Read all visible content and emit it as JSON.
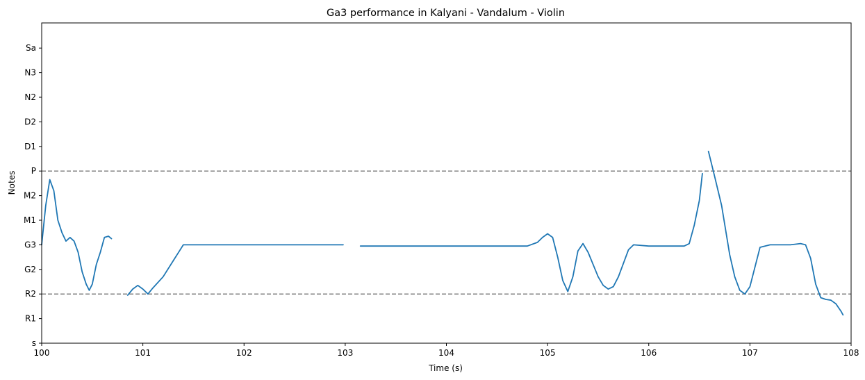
{
  "chart_data": {
    "type": "line",
    "title": "Ga3 performance in Kalyani - Vandalum - Violin",
    "xlabel": "Time (s)",
    "ylabel": "Notes",
    "xlim": [
      100,
      108
    ],
    "x_ticks": [
      100,
      101,
      102,
      103,
      104,
      105,
      106,
      107,
      108
    ],
    "y_ticks": [
      "s",
      "R1",
      "R2",
      "G2",
      "G3",
      "M1",
      "M2",
      "P",
      "D1",
      "D2",
      "N2",
      "N3",
      "Sa"
    ],
    "reference_lines": [
      "R2",
      "P"
    ],
    "grid": false,
    "legend": "none",
    "colors": {
      "series": "#1f77b4",
      "reference_line": "#808080"
    },
    "series": [
      {
        "segments": [
          [
            [
              100.0,
              4.0
            ],
            [
              100.04,
              5.6
            ],
            [
              100.08,
              6.65
            ],
            [
              100.12,
              6.2
            ],
            [
              100.16,
              5.0
            ],
            [
              100.2,
              4.5
            ],
            [
              100.24,
              4.15
            ],
            [
              100.28,
              4.3
            ],
            [
              100.32,
              4.15
            ],
            [
              100.36,
              3.7
            ],
            [
              100.4,
              2.9
            ],
            [
              100.44,
              2.4
            ],
            [
              100.47,
              2.15
            ],
            [
              100.5,
              2.4
            ],
            [
              100.54,
              3.2
            ],
            [
              100.58,
              3.7
            ],
            [
              100.62,
              4.3
            ],
            [
              100.66,
              4.35
            ],
            [
              100.69,
              4.25
            ]
          ],
          [
            [
              100.85,
              1.95
            ],
            [
              100.9,
              2.2
            ],
            [
              100.95,
              2.35
            ],
            [
              101.0,
              2.2
            ],
            [
              101.05,
              2.0
            ],
            [
              101.1,
              2.25
            ],
            [
              101.2,
              2.7
            ],
            [
              101.3,
              3.35
            ],
            [
              101.4,
              4.0
            ],
            [
              101.6,
              4.0
            ],
            [
              101.8,
              4.0
            ],
            [
              102.0,
              4.0
            ],
            [
              102.2,
              4.0
            ],
            [
              102.4,
              4.0
            ],
            [
              102.6,
              4.0
            ],
            [
              102.8,
              4.0
            ],
            [
              102.98,
              4.0
            ]
          ],
          [
            [
              103.15,
              3.95
            ],
            [
              103.3,
              3.95
            ],
            [
              103.45,
              3.95
            ],
            [
              103.6,
              3.95
            ],
            [
              103.8,
              3.95
            ],
            [
              104.0,
              3.95
            ],
            [
              104.2,
              3.95
            ],
            [
              104.4,
              3.95
            ],
            [
              104.6,
              3.95
            ],
            [
              104.8,
              3.95
            ],
            [
              104.9,
              4.1
            ],
            [
              104.95,
              4.3
            ],
            [
              105.0,
              4.45
            ],
            [
              105.05,
              4.3
            ],
            [
              105.1,
              3.5
            ],
            [
              105.15,
              2.55
            ],
            [
              105.2,
              2.1
            ],
            [
              105.25,
              2.7
            ],
            [
              105.3,
              3.75
            ],
            [
              105.35,
              4.05
            ],
            [
              105.4,
              3.7
            ],
            [
              105.45,
              3.2
            ],
            [
              105.5,
              2.7
            ],
            [
              105.55,
              2.35
            ],
            [
              105.6,
              2.2
            ],
            [
              105.65,
              2.3
            ],
            [
              105.7,
              2.7
            ],
            [
              105.75,
              3.25
            ],
            [
              105.8,
              3.8
            ],
            [
              105.85,
              4.0
            ],
            [
              106.0,
              3.95
            ],
            [
              106.2,
              3.95
            ],
            [
              106.35,
              3.95
            ],
            [
              106.4,
              4.05
            ],
            [
              106.45,
              4.8
            ],
            [
              106.5,
              5.8
            ],
            [
              106.53,
              6.9
            ]
          ],
          [
            [
              106.59,
              7.8
            ],
            [
              106.65,
              6.8
            ],
            [
              106.72,
              5.6
            ],
            [
              106.8,
              3.6
            ],
            [
              106.85,
              2.7
            ],
            [
              106.9,
              2.15
            ],
            [
              106.95,
              2.0
            ],
            [
              107.0,
              2.3
            ],
            [
              107.05,
              3.1
            ],
            [
              107.1,
              3.9
            ],
            [
              107.2,
              4.0
            ],
            [
              107.4,
              4.0
            ],
            [
              107.5,
              4.05
            ],
            [
              107.55,
              4.0
            ],
            [
              107.6,
              3.45
            ],
            [
              107.65,
              2.4
            ],
            [
              107.7,
              1.85
            ],
            [
              107.75,
              1.78
            ],
            [
              107.8,
              1.75
            ],
            [
              107.85,
              1.6
            ],
            [
              107.9,
              1.3
            ],
            [
              107.92,
              1.15
            ]
          ]
        ]
      }
    ]
  }
}
